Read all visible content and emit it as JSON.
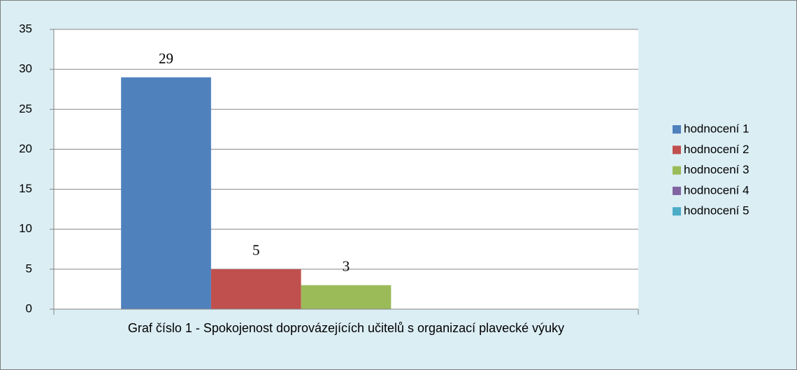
{
  "chart_data": {
    "type": "bar",
    "categories": [
      "Graf číslo 1 - Spokojenost doprovázejících učitelů s organizací plavecké výuky"
    ],
    "series": [
      {
        "name": "hodnocení 1",
        "color": "#4f81bd",
        "values": [
          29
        ],
        "data_labels": true
      },
      {
        "name": "hodnocení 2",
        "color": "#c0504d",
        "values": [
          5
        ],
        "data_labels": true
      },
      {
        "name": "hodnocení 3",
        "color": "#9bbb59",
        "values": [
          3
        ],
        "data_labels": true
      },
      {
        "name": "hodnocení 4",
        "color": "#8064a2",
        "values": [
          0
        ],
        "data_labels": false
      },
      {
        "name": "hodnocení 5",
        "color": "#4bacc6",
        "values": [
          0
        ],
        "data_labels": false
      }
    ],
    "ylim": [
      0,
      35
    ],
    "yticks": [
      0,
      5,
      10,
      15,
      20,
      25,
      30,
      35
    ],
    "grid": true,
    "legend": "right"
  }
}
